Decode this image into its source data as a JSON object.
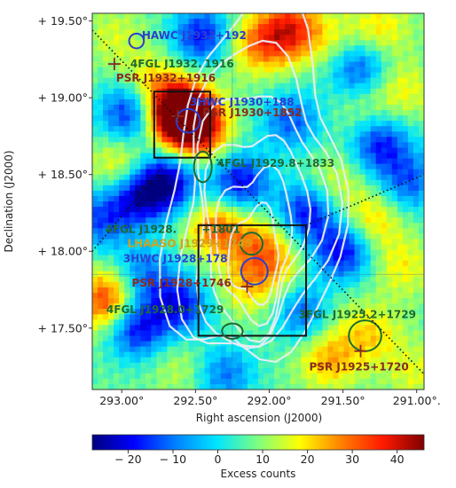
{
  "chart_data": {
    "type": "heatmap",
    "title": "",
    "xlabel": "Right ascension (J2000)",
    "ylabel": "Declination (J2000)",
    "xlim": [
      293.2,
      290.95
    ],
    "ylim": [
      17.1,
      19.55
    ],
    "x_ticks": [
      {
        "value": 293.0,
        "label": "293.00°"
      },
      {
        "value": 292.5,
        "label": "292.50°"
      },
      {
        "value": 292.0,
        "label": "292.00°"
      },
      {
        "value": 291.5,
        "label": "291.50°"
      },
      {
        "value": 291.0,
        "label": "291.00°."
      }
    ],
    "y_ticks": [
      {
        "value": 19.5,
        "label": "+ 19.50°"
      },
      {
        "value": 19.0,
        "label": "+ 19.00°"
      },
      {
        "value": 18.5,
        "label": "+ 18.50°"
      },
      {
        "value": 18.0,
        "label": "+ 18.00°"
      },
      {
        "value": 17.5,
        "label": "+ 17.50°"
      }
    ],
    "colorbar": {
      "label": "Excess counts",
      "range": [
        -28,
        46
      ],
      "ticks": [
        -20,
        -10,
        0,
        10,
        20,
        30,
        40
      ],
      "tick_labels": [
        "− 20",
        "− 10",
        "0",
        "10",
        "20",
        "30",
        "40"
      ],
      "colors": [
        "#00007f",
        "#0000ff",
        "#0080ff",
        "#00e5ff",
        "#7fff7f",
        "#ffff00",
        "#ff8000",
        "#ff1a00",
        "#7f0000"
      ]
    },
    "hotspots": [
      {
        "ra": 292.62,
        "dec": 18.9,
        "value": 46
      },
      {
        "ra": 292.55,
        "dec": 18.86,
        "value": 40
      },
      {
        "ra": 292.45,
        "dec": 18.75,
        "value": 22
      },
      {
        "ra": 292.8,
        "dec": 19.1,
        "value": 20
      },
      {
        "ra": 292.35,
        "dec": 18.15,
        "value": 30
      },
      {
        "ra": 292.05,
        "dec": 18.05,
        "value": 22
      },
      {
        "ra": 291.95,
        "dec": 17.9,
        "value": 18
      },
      {
        "ra": 292.15,
        "dec": 17.78,
        "value": 20
      },
      {
        "ra": 293.1,
        "dec": 17.68,
        "value": 36
      },
      {
        "ra": 293.0,
        "dec": 18.55,
        "value": 22
      },
      {
        "ra": 293.05,
        "dec": 19.4,
        "value": 15
      },
      {
        "ra": 292.28,
        "dec": 19.35,
        "value": 12
      },
      {
        "ra": 292.05,
        "dec": 19.35,
        "value": 26
      },
      {
        "ra": 291.85,
        "dec": 19.45,
        "value": 34
      },
      {
        "ra": 291.55,
        "dec": 19.35,
        "value": 16
      },
      {
        "ra": 291.25,
        "dec": 19.45,
        "value": 20
      },
      {
        "ra": 291.1,
        "dec": 19.05,
        "value": 18
      },
      {
        "ra": 291.35,
        "dec": 18.9,
        "value": 14
      },
      {
        "ra": 291.55,
        "dec": 18.45,
        "value": 16
      },
      {
        "ra": 291.3,
        "dec": 18.2,
        "value": 22
      },
      {
        "ra": 291.1,
        "dec": 17.9,
        "value": 18
      },
      {
        "ra": 291.3,
        "dec": 17.45,
        "value": 20
      },
      {
        "ra": 291.6,
        "dec": 17.6,
        "value": 14
      },
      {
        "ra": 291.6,
        "dec": 17.3,
        "value": 24
      },
      {
        "ra": 292.6,
        "dec": 17.25,
        "value": 14
      },
      {
        "ra": 291.0,
        "dec": 17.2,
        "value": 16
      },
      {
        "ra": 292.7,
        "dec": 18.45,
        "value": -25
      },
      {
        "ra": 292.9,
        "dec": 18.35,
        "value": -18
      },
      {
        "ra": 292.95,
        "dec": 18.9,
        "value": -18
      },
      {
        "ra": 292.45,
        "dec": 19.4,
        "value": -20
      },
      {
        "ra": 292.2,
        "dec": 18.45,
        "value": -20
      },
      {
        "ra": 291.4,
        "dec": 19.2,
        "value": -15
      },
      {
        "ra": 291.85,
        "dec": 18.85,
        "value": -12
      },
      {
        "ra": 291.25,
        "dec": 18.7,
        "value": -18
      },
      {
        "ra": 291.75,
        "dec": 18.25,
        "value": -18
      },
      {
        "ra": 291.5,
        "dec": 18.0,
        "value": -20
      },
      {
        "ra": 291.75,
        "dec": 17.6,
        "value": -15
      },
      {
        "ra": 292.6,
        "dec": 17.65,
        "value": -18
      },
      {
        "ra": 292.9,
        "dec": 17.5,
        "value": -20
      },
      {
        "ra": 292.85,
        "dec": 17.85,
        "value": -10
      },
      {
        "ra": 291.05,
        "dec": 18.45,
        "value": -12
      },
      {
        "ra": 292.3,
        "dec": 17.2,
        "value": -10
      },
      {
        "ra": 293.15,
        "dec": 18.2,
        "value": -12
      }
    ],
    "contour_levels": [
      1,
      2,
      3,
      4,
      5,
      6
    ],
    "contour_center": {
      "ra": 292.1,
      "dec": 17.85
    },
    "regions": [
      {
        "type": "box",
        "ra_min": 292.4,
        "ra_max": 292.78,
        "dec_min": 18.61,
        "dec_max": 19.04
      },
      {
        "type": "box",
        "ra_min": 291.75,
        "ra_max": 292.48,
        "dec_min": 17.45,
        "dec_max": 18.17
      }
    ],
    "dotted_lines": [
      {
        "from": {
          "ra": 293.2,
          "dec": 19.44
        },
        "to": {
          "ra": 290.95,
          "dec": 17.2
        }
      },
      {
        "from": {
          "ra": 293.2,
          "dec": 18.0
        },
        "to": {
          "ra": 292.72,
          "dec": 18.55
        }
      },
      {
        "from": {
          "ra": 291.75,
          "dec": 18.17
        },
        "to": {
          "ra": 290.95,
          "dec": 18.5
        }
      }
    ],
    "sources": [
      {
        "label": "HAWC J1932+192",
        "ra": 292.9,
        "dec": 19.37,
        "marker": "circle",
        "r_deg": 0.05,
        "cls": "hawc",
        "text_dx": 6,
        "text_dy": -2
      },
      {
        "label": "4FGL J1932.",
        "ra": 293.05,
        "dec": 19.22,
        "marker": "none",
        "cls": "fgl",
        "text_dx": 18,
        "text_dy": 4
      },
      {
        "label": "1916",
        "ra": 292.44,
        "dec": 19.22,
        "marker": "none",
        "cls": "fgl",
        "text_dx": 0,
        "text_dy": 4
      },
      {
        "label": "PSR J1932+1916",
        "ra": 293.05,
        "dec": 19.22,
        "marker": "plus",
        "cls": "psr",
        "text_dx": 2,
        "text_dy": 20
      },
      {
        "label": "3HWC J1930+188",
        "ra": 292.55,
        "dec": 18.85,
        "marker": "circle",
        "r_deg": 0.08,
        "cls": "hawc",
        "text_dx": 2,
        "text_dy": -17
      },
      {
        "label": "PSR J1930+1852",
        "ra": 292.62,
        "dec": 18.88,
        "marker": "plus",
        "cls": "psr",
        "text_dx": 28,
        "text_dy": 0
      },
      {
        "label": "4FGL J1929.8+1833",
        "ra": 292.45,
        "dec": 18.55,
        "marker": "ellipse",
        "rx_deg": 0.06,
        "ry_deg": 0.1,
        "cls": "fgl",
        "text_dx": 16,
        "text_dy": 0
      },
      {
        "label": "4FGL J1928.",
        "ra": 292.12,
        "dec": 18.05,
        "marker": "circle",
        "r_deg": 0.075,
        "cls": "fgl",
        "text_dx": -165,
        "text_dy": -12
      },
      {
        "label": "+1801",
        "ra": 292.12,
        "dec": 18.05,
        "marker": "none",
        "cls": "fgl",
        "text_dx": -56,
        "text_dy": -12
      },
      {
        "label": "LHAASO J1929+1745",
        "ra": 292.12,
        "dec": 18.05,
        "marker": "none",
        "cls": "lhaaso",
        "text_dx": -140,
        "text_dy": 4
      },
      {
        "label": "3HWC J1928+178",
        "ra": 292.1,
        "dec": 17.87,
        "marker": "circle",
        "r_deg": 0.09,
        "cls": "hawc",
        "text_dx": -148,
        "text_dy": -10
      },
      {
        "label": "PSR J1928+1746",
        "ra": 292.15,
        "dec": 17.77,
        "marker": "plus",
        "cls": "psr",
        "text_dx": -130,
        "text_dy": 0
      },
      {
        "label": "4FGL J1928.0+1729",
        "ra": 292.25,
        "dec": 17.48,
        "marker": "ellipse",
        "rx_deg": 0.07,
        "ry_deg": 0.05,
        "cls": "fgl",
        "text_dx": -142,
        "text_dy": -20
      },
      {
        "label": "3FGL J1925.2+1729",
        "ra": 291.35,
        "dec": 17.45,
        "marker": "ellipse",
        "rx_deg": 0.11,
        "ry_deg": 0.1,
        "cls": "fgl",
        "text_dx": -75,
        "text_dy": -20
      },
      {
        "label": "PSR J1925+1720",
        "ra": 291.38,
        "dec": 17.35,
        "marker": "plus",
        "cls": "psr",
        "text_dx": -58,
        "text_dy": 22
      }
    ]
  }
}
